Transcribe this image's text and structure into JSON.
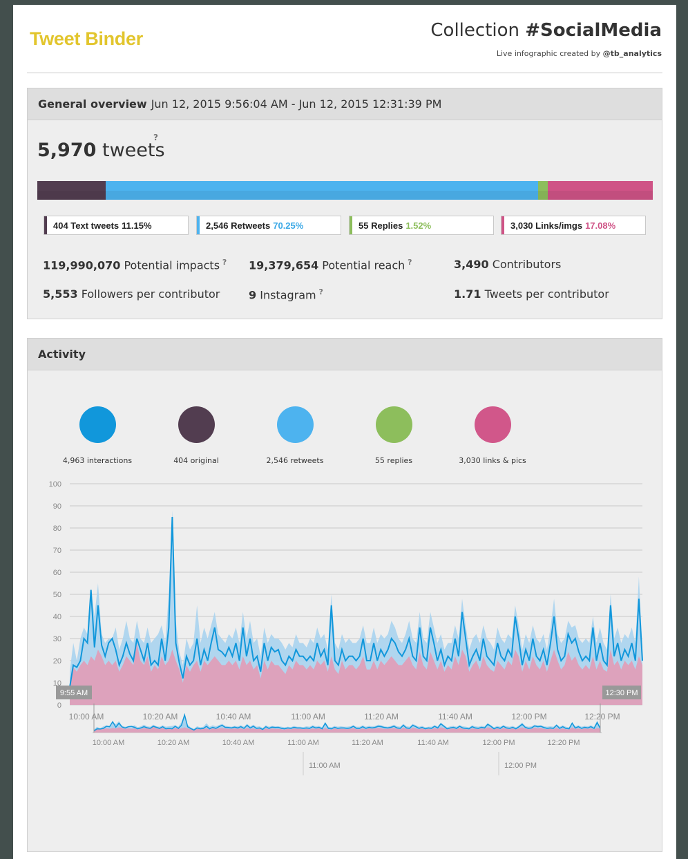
{
  "header": {
    "logo": "Tweet Binder",
    "collection_prefix": "Collection ",
    "collection_name": "#SocialMedia",
    "subtitle_prefix": "Live infographic created by ",
    "subtitle_handle": "@tb_analytics"
  },
  "overview": {
    "title": "General overview",
    "date_range": "Jun 12, 2015 9:56:04 AM - Jun 12, 2015 12:31:39 PM",
    "total_count": "5,970",
    "total_label": " tweets",
    "help": "?",
    "bar_segments": [
      {
        "name": "Text tweets",
        "fraction": 0.1115,
        "color": "#523d50"
      },
      {
        "name": "Retweets",
        "fraction": 0.7025,
        "color": "#4db3ef"
      },
      {
        "name": "Replies",
        "fraction": 0.0152,
        "color": "#8dbe5c"
      },
      {
        "name": "Links/imgs",
        "fraction": 0.1708,
        "color": "#cf5386"
      }
    ],
    "legend": [
      {
        "label": "404 Text tweets",
        "pct": "11.15%",
        "color": "#523d50",
        "pct_color": "#222222"
      },
      {
        "label": "2,546 Retweets",
        "pct": "70.25%",
        "color": "#4db3ef",
        "pct_color": "#3aa8e6"
      },
      {
        "label": "55 Replies",
        "pct": "1.52%",
        "color": "#8dbe5c",
        "pct_color": "#8dbe5c"
      },
      {
        "label": "3,030 Links/imgs",
        "pct": "17.08%",
        "color": "#cf5386",
        "pct_color": "#cf5386"
      }
    ],
    "stats": [
      {
        "value": "119,990,070",
        "label": " Potential impacts",
        "help": "?"
      },
      {
        "value": "19,379,654",
        "label": " Potential reach",
        "help": "?"
      },
      {
        "value": "3,490",
        "label": " Contributors",
        "help": ""
      },
      {
        "value": "5,553",
        "label": " Followers per contributor",
        "help": ""
      },
      {
        "value": "9",
        "label": " Instagram",
        "help": "?"
      },
      {
        "value": "1.71",
        "label": " Tweets per contributor",
        "help": ""
      }
    ]
  },
  "activity": {
    "title": "Activity",
    "circles": [
      {
        "label": "4,963 interactions",
        "color": "#1197db"
      },
      {
        "label": "404 original",
        "color": "#523d50"
      },
      {
        "label": "2,546 retweets",
        "color": "#4db3ef"
      },
      {
        "label": "55 replies",
        "color": "#8dbe5c"
      },
      {
        "label": "3,030 links & pics",
        "color": "#d1578a"
      }
    ]
  },
  "chart_data": {
    "type": "area",
    "ylim": [
      0,
      100
    ],
    "y_ticks": [
      "0",
      "10",
      "20",
      "30",
      "40",
      "50",
      "60",
      "70",
      "80",
      "90",
      "100"
    ],
    "x_ticks": [
      "10:00 AM",
      "10:20 AM",
      "10:40 AM",
      "11:00 AM",
      "11:20 AM",
      "11:40 AM",
      "12:00 PM",
      "12:20 PM"
    ],
    "navigator_ticks": [
      "10:00 AM",
      "10:20 AM",
      "10:40 AM",
      "11:00 AM",
      "11:20 AM",
      "11:40 AM",
      "12:00 PM",
      "12:20 PM"
    ],
    "navigator_secondary_ticks": [
      "11:00 AM",
      "12:00 PM"
    ],
    "range_start": "9:55 AM",
    "range_end": "12:30 PM",
    "series": [
      {
        "name": "interactions",
        "color": "#1197db",
        "values": [
          8,
          18,
          17,
          20,
          30,
          28,
          52,
          26,
          45,
          27,
          22,
          28,
          30,
          25,
          18,
          22,
          28,
          23,
          20,
          30,
          25,
          20,
          28,
          18,
          20,
          18,
          30,
          20,
          35,
          85,
          28,
          19,
          12,
          22,
          18,
          20,
          30,
          18,
          25,
          20,
          28,
          35,
          25,
          24,
          22,
          26,
          22,
          28,
          20,
          35,
          22,
          30,
          20,
          22,
          15,
          28,
          20,
          26,
          24,
          25,
          20,
          18,
          22,
          20,
          25,
          22,
          22,
          20,
          22,
          20,
          28,
          22,
          25,
          18,
          45,
          20,
          18,
          25,
          20,
          22,
          22,
          20,
          22,
          30,
          20,
          20,
          28,
          20,
          25,
          22,
          25,
          30,
          28,
          24,
          22,
          25,
          30,
          22,
          20,
          35,
          22,
          20,
          35,
          28,
          20,
          25,
          18,
          22,
          20,
          30,
          22,
          42,
          30,
          18,
          22,
          25,
          20,
          30,
          22,
          20,
          18,
          28,
          22,
          20,
          25,
          22,
          40,
          30,
          18,
          25,
          20,
          30,
          22,
          20,
          25,
          18,
          28,
          40,
          25,
          20,
          22,
          32,
          28,
          30,
          24,
          20,
          22,
          20,
          35,
          20,
          28,
          20,
          18,
          45,
          22,
          28,
          20,
          25,
          22,
          28,
          20,
          48,
          20
        ]
      },
      {
        "name": "retweets",
        "color": "#4db3ef",
        "values": [
          15,
          28,
          20,
          30,
          35,
          32,
          52,
          40,
          55,
          32,
          28,
          30,
          30,
          35,
          25,
          30,
          38,
          30,
          28,
          38,
          30,
          28,
          35,
          28,
          30,
          32,
          36,
          28,
          50,
          88,
          38,
          24,
          18,
          30,
          25,
          28,
          45,
          28,
          35,
          30,
          36,
          42,
          32,
          30,
          28,
          32,
          30,
          35,
          28,
          42,
          30,
          38,
          28,
          30,
          22,
          35,
          28,
          32,
          30,
          30,
          28,
          25,
          28,
          26,
          32,
          28,
          28,
          26,
          30,
          28,
          35,
          30,
          32,
          25,
          50,
          28,
          25,
          32,
          28,
          30,
          28,
          28,
          30,
          36,
          28,
          28,
          35,
          28,
          32,
          30,
          32,
          38,
          35,
          30,
          28,
          32,
          38,
          30,
          28,
          42,
          30,
          28,
          42,
          35,
          28,
          32,
          25,
          28,
          28,
          36,
          30,
          48,
          36,
          25,
          30,
          32,
          28,
          36,
          30,
          28,
          25,
          35,
          30,
          28,
          32,
          30,
          45,
          36,
          25,
          32,
          28,
          36,
          30,
          28,
          32,
          25,
          35,
          48,
          32,
          28,
          30,
          38,
          35,
          36,
          30,
          28,
          30,
          28,
          40,
          28,
          35,
          28,
          25,
          50,
          30,
          35,
          28,
          32,
          30,
          35,
          28,
          58,
          25
        ]
      },
      {
        "name": "links & pics",
        "color": "#d89ab5",
        "values": [
          10,
          17,
          15,
          18,
          20,
          18,
          22,
          20,
          25,
          22,
          18,
          20,
          18,
          20,
          15,
          18,
          22,
          20,
          18,
          28,
          20,
          18,
          22,
          15,
          18,
          16,
          22,
          18,
          20,
          25,
          20,
          16,
          10,
          18,
          15,
          18,
          20,
          15,
          20,
          18,
          20,
          22,
          20,
          18,
          18,
          20,
          18,
          20,
          16,
          22,
          18,
          20,
          16,
          18,
          12,
          20,
          16,
          20,
          18,
          18,
          16,
          14,
          18,
          16,
          20,
          18,
          18,
          16,
          18,
          16,
          20,
          18,
          20,
          15,
          22,
          16,
          14,
          20,
          16,
          18,
          18,
          16,
          18,
          22,
          16,
          16,
          20,
          16,
          20,
          18,
          20,
          22,
          20,
          18,
          18,
          20,
          22,
          18,
          16,
          24,
          18,
          16,
          24,
          20,
          16,
          20,
          15,
          18,
          16,
          22,
          18,
          25,
          22,
          15,
          18,
          20,
          16,
          22,
          18,
          16,
          15,
          20,
          18,
          16,
          20,
          18,
          25,
          22,
          15,
          20,
          16,
          22,
          18,
          16,
          20,
          15,
          20,
          25,
          20,
          16,
          18,
          24,
          20,
          22,
          18,
          16,
          18,
          16,
          22,
          16,
          20,
          16,
          15,
          25,
          18,
          20,
          16,
          20,
          18,
          20,
          16,
          22,
          18
        ]
      }
    ]
  }
}
